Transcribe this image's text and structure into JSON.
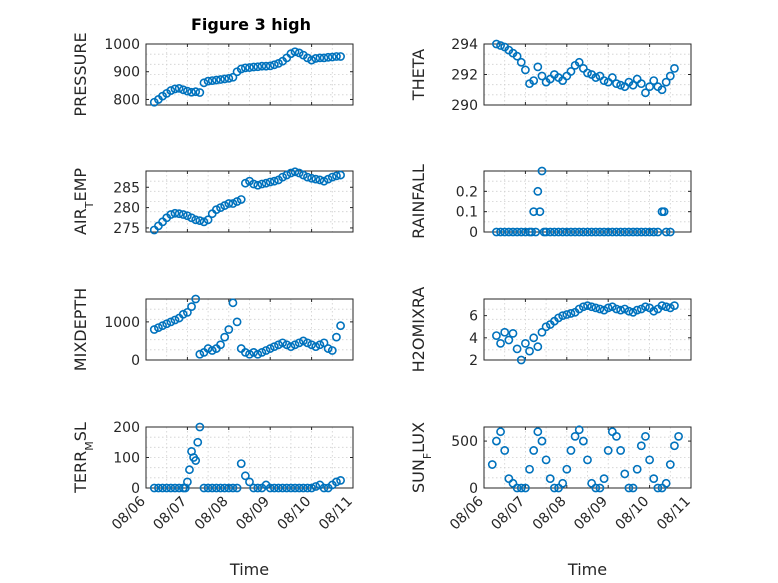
{
  "title": "Figure 3 high",
  "colors": {
    "marker": "#0072bd",
    "axis": "#262626",
    "grid": "#cfcfcf",
    "background": "#ffffff"
  },
  "x_tick_labels": [
    "08/06",
    "08/07",
    "08/08",
    "08/09",
    "08/10",
    "08/11"
  ],
  "x_label": "Time",
  "chart_data": [
    {
      "id": "pressure",
      "type": "scatter",
      "title": "Figure 3 high",
      "ylabel": "PRESSURE",
      "ylim": [
        780,
        1000
      ],
      "yticks": [
        "800",
        "900",
        "1000"
      ],
      "xlim": [
        0,
        5
      ],
      "grid": "on",
      "marker": "open-circle",
      "x": [
        0.2,
        0.3,
        0.4,
        0.5,
        0.6,
        0.7,
        0.8,
        0.9,
        1.0,
        1.1,
        1.2,
        1.3,
        1.4,
        1.5,
        1.6,
        1.7,
        1.8,
        1.9,
        2.0,
        2.1,
        2.2,
        2.3,
        2.4,
        2.5,
        2.6,
        2.7,
        2.8,
        2.9,
        3.0,
        3.1,
        3.2,
        3.3,
        3.4,
        3.5,
        3.6,
        3.7,
        3.8,
        3.9,
        4.0,
        4.1,
        4.2,
        4.3,
        4.4,
        4.5,
        4.6,
        4.7
      ],
      "y": [
        790,
        800,
        812,
        822,
        832,
        838,
        840,
        835,
        830,
        826,
        828,
        825,
        860,
        866,
        868,
        870,
        872,
        874,
        876,
        880,
        900,
        910,
        914,
        915,
        917,
        918,
        920,
        920,
        921,
        925,
        930,
        938,
        950,
        965,
        972,
        968,
        960,
        950,
        942,
        948,
        950,
        950,
        952,
        953,
        955,
        955
      ]
    },
    {
      "id": "theta",
      "type": "scatter",
      "ylabel": "THETA",
      "ylim": [
        290,
        294
      ],
      "yticks": [
        "290",
        "292",
        "294"
      ],
      "xlim": [
        0,
        5
      ],
      "grid": "on",
      "marker": "open-circle",
      "x": [
        0.3,
        0.4,
        0.5,
        0.6,
        0.7,
        0.8,
        0.9,
        1.0,
        1.1,
        1.2,
        1.3,
        1.4,
        1.5,
        1.6,
        1.7,
        1.8,
        1.9,
        2.0,
        2.1,
        2.2,
        2.3,
        2.4,
        2.5,
        2.6,
        2.7,
        2.8,
        2.9,
        3.0,
        3.1,
        3.2,
        3.3,
        3.4,
        3.5,
        3.6,
        3.7,
        3.8,
        3.9,
        4.0,
        4.1,
        4.2,
        4.3,
        4.4,
        4.5,
        4.6
      ],
      "y": [
        294,
        293.9,
        293.8,
        293.6,
        293.4,
        293.2,
        292.8,
        292.3,
        291.4,
        291.6,
        292.5,
        291.9,
        291.5,
        291.7,
        292.0,
        291.8,
        291.6,
        291.9,
        292.2,
        292.6,
        292.8,
        292.4,
        292.1,
        292.0,
        291.8,
        291.9,
        291.6,
        291.5,
        291.8,
        291.4,
        291.3,
        291.2,
        291.5,
        291.3,
        291.7,
        291.4,
        290.8,
        291.2,
        291.6,
        291.2,
        291.0,
        291.5,
        291.9,
        292.4
      ]
    },
    {
      "id": "air_temp",
      "type": "scatter",
      "ylabel": "AIR",
      "ylabel_sub": "T",
      "ylabel_rest": "EMP",
      "ylim": [
        274,
        289
      ],
      "yticks": [
        "275",
        "280",
        "285"
      ],
      "xlim": [
        0,
        5
      ],
      "grid": "on",
      "marker": "open-circle",
      "x": [
        0.2,
        0.3,
        0.4,
        0.5,
        0.6,
        0.7,
        0.8,
        0.9,
        1.0,
        1.1,
        1.2,
        1.3,
        1.4,
        1.5,
        1.6,
        1.7,
        1.8,
        1.9,
        2.0,
        2.1,
        2.2,
        2.3,
        2.4,
        2.5,
        2.6,
        2.7,
        2.8,
        2.9,
        3.0,
        3.1,
        3.2,
        3.3,
        3.4,
        3.5,
        3.6,
        3.7,
        3.8,
        3.9,
        4.0,
        4.1,
        4.2,
        4.3,
        4.4,
        4.5,
        4.6,
        4.7
      ],
      "y": [
        274.5,
        275.5,
        276.5,
        277.5,
        278.3,
        278.6,
        278.5,
        278.3,
        278.0,
        277.5,
        277.0,
        276.8,
        276.5,
        277.0,
        278.5,
        279.5,
        280.0,
        280.5,
        281.0,
        281.0,
        281.5,
        282.0,
        286.0,
        286.5,
        285.8,
        285.5,
        285.8,
        286.0,
        286.3,
        286.5,
        286.8,
        287.5,
        288.0,
        288.5,
        288.8,
        288.5,
        288.0,
        287.5,
        287.2,
        287.0,
        286.8,
        286.5,
        287.0,
        287.5,
        287.8,
        288.0
      ]
    },
    {
      "id": "rainfall",
      "type": "scatter",
      "ylabel": "RAINFALL",
      "ylim": [
        0,
        0.3
      ],
      "yticks": [
        "0",
        "0.1",
        "0.2"
      ],
      "xlim": [
        0,
        5
      ],
      "grid": "on",
      "marker": "open-circle",
      "x": [
        0.3,
        0.4,
        0.5,
        0.6,
        0.7,
        0.8,
        0.9,
        1.0,
        1.1,
        1.15,
        1.2,
        1.25,
        1.3,
        1.35,
        1.4,
        1.45,
        1.5,
        1.6,
        1.7,
        1.8,
        1.9,
        2.0,
        2.1,
        2.2,
        2.3,
        2.4,
        2.5,
        2.6,
        2.7,
        2.8,
        2.9,
        3.0,
        3.1,
        3.2,
        3.3,
        3.4,
        3.5,
        3.6,
        3.7,
        3.8,
        3.9,
        4.0,
        4.1,
        4.2,
        4.3,
        4.35,
        4.4,
        4.5
      ],
      "y": [
        0,
        0,
        0,
        0,
        0,
        0,
        0,
        0,
        0,
        0,
        0.1,
        0,
        0.2,
        0.1,
        0.3,
        0,
        0,
        0,
        0,
        0,
        0,
        0,
        0,
        0,
        0,
        0,
        0,
        0,
        0,
        0,
        0,
        0,
        0,
        0,
        0,
        0,
        0,
        0,
        0,
        0,
        0,
        0,
        0,
        0,
        0.1,
        0.1,
        0,
        0
      ]
    },
    {
      "id": "mixdepth",
      "type": "scatter",
      "ylabel": "MIXDEPTH",
      "ylim": [
        0,
        1600
      ],
      "yticks": [
        "0",
        "1000"
      ],
      "xlim": [
        0,
        5
      ],
      "grid": "on",
      "marker": "open-circle",
      "x": [
        0.2,
        0.3,
        0.4,
        0.5,
        0.6,
        0.7,
        0.8,
        0.9,
        1.0,
        1.1,
        1.2,
        1.3,
        1.4,
        1.5,
        1.6,
        1.7,
        1.8,
        1.9,
        2.0,
        2.1,
        2.2,
        2.3,
        2.4,
        2.5,
        2.6,
        2.7,
        2.8,
        2.9,
        3.0,
        3.1,
        3.2,
        3.3,
        3.4,
        3.5,
        3.6,
        3.7,
        3.8,
        3.9,
        4.0,
        4.1,
        4.2,
        4.3,
        4.4,
        4.5,
        4.6,
        4.7
      ],
      "y": [
        800,
        850,
        900,
        950,
        1000,
        1050,
        1100,
        1200,
        1250,
        1400,
        1600,
        150,
        200,
        300,
        250,
        300,
        400,
        600,
        800,
        1500,
        1000,
        300,
        200,
        150,
        200,
        150,
        200,
        250,
        300,
        350,
        400,
        450,
        400,
        350,
        400,
        450,
        500,
        450,
        400,
        350,
        400,
        450,
        300,
        250,
        600,
        900
      ]
    },
    {
      "id": "h2omixra",
      "type": "scatter",
      "ylabel": "H2OMIXRA",
      "ylim": [
        2,
        7.5
      ],
      "yticks": [
        "2",
        "4",
        "6"
      ],
      "xlim": [
        0,
        5
      ],
      "grid": "on",
      "marker": "open-circle",
      "x": [
        0.3,
        0.4,
        0.5,
        0.6,
        0.7,
        0.8,
        0.9,
        1.0,
        1.1,
        1.2,
        1.3,
        1.4,
        1.5,
        1.6,
        1.7,
        1.8,
        1.9,
        2.0,
        2.1,
        2.2,
        2.3,
        2.4,
        2.5,
        2.6,
        2.7,
        2.8,
        2.9,
        3.0,
        3.1,
        3.2,
        3.3,
        3.4,
        3.5,
        3.6,
        3.7,
        3.8,
        3.9,
        4.0,
        4.1,
        4.2,
        4.3,
        4.4,
        4.5,
        4.6
      ],
      "y": [
        4.2,
        3.5,
        4.5,
        3.8,
        4.4,
        3.0,
        2.0,
        3.5,
        2.8,
        4.0,
        3.2,
        4.5,
        5.0,
        5.2,
        5.5,
        5.8,
        6.0,
        6.1,
        6.2,
        6.3,
        6.6,
        6.8,
        6.9,
        6.8,
        6.7,
        6.6,
        6.5,
        6.7,
        6.8,
        6.6,
        6.5,
        6.6,
        6.4,
        6.3,
        6.5,
        6.6,
        6.8,
        6.7,
        6.4,
        6.6,
        6.9,
        6.8,
        6.7,
        6.9
      ]
    },
    {
      "id": "terr_msl",
      "type": "scatter",
      "ylabel": "TERR",
      "ylabel_sub": "M",
      "ylabel_rest": "SL",
      "ylim": [
        0,
        200
      ],
      "yticks": [
        "0",
        "100",
        "200"
      ],
      "xlim": [
        0,
        5
      ],
      "grid": "on",
      "marker": "open-circle",
      "xticks": [
        "08/06",
        "08/07",
        "08/08",
        "08/09",
        "08/10",
        "08/11"
      ],
      "xlabel": "Time",
      "x": [
        0.2,
        0.3,
        0.4,
        0.5,
        0.6,
        0.7,
        0.8,
        0.9,
        0.95,
        1.0,
        1.05,
        1.1,
        1.15,
        1.2,
        1.25,
        1.3,
        1.4,
        1.5,
        1.6,
        1.7,
        1.8,
        1.9,
        2.0,
        2.1,
        2.2,
        2.3,
        2.4,
        2.5,
        2.6,
        2.7,
        2.8,
        2.9,
        3.0,
        3.1,
        3.2,
        3.3,
        3.4,
        3.5,
        3.6,
        3.7,
        3.8,
        3.9,
        4.0,
        4.1,
        4.2,
        4.3,
        4.4,
        4.5,
        4.6,
        4.7
      ],
      "y": [
        0,
        0,
        0,
        0,
        0,
        0,
        0,
        0,
        0,
        20,
        60,
        120,
        100,
        90,
        150,
        200,
        0,
        0,
        0,
        0,
        0,
        0,
        0,
        0,
        0,
        80,
        40,
        20,
        0,
        0,
        0,
        10,
        0,
        0,
        0,
        0,
        0,
        0,
        0,
        0,
        0,
        0,
        0,
        5,
        10,
        0,
        0,
        10,
        20,
        25
      ]
    },
    {
      "id": "sun_flux",
      "type": "scatter",
      "ylabel": "SUN",
      "ylabel_sub": "F",
      "ylabel_rest": "LUX",
      "ylim": [
        0,
        650
      ],
      "yticks": [
        "0",
        "500"
      ],
      "xlim": [
        0,
        5
      ],
      "grid": "on",
      "marker": "open-circle",
      "xticks": [
        "08/06",
        "08/07",
        "08/08",
        "08/09",
        "08/10",
        "08/11"
      ],
      "xlabel": "Time",
      "x": [
        0.2,
        0.3,
        0.4,
        0.5,
        0.6,
        0.7,
        0.8,
        0.9,
        1.0,
        1.1,
        1.2,
        1.3,
        1.4,
        1.5,
        1.6,
        1.7,
        1.8,
        1.9,
        2.0,
        2.1,
        2.2,
        2.3,
        2.4,
        2.5,
        2.6,
        2.7,
        2.8,
        2.9,
        3.0,
        3.1,
        3.2,
        3.3,
        3.4,
        3.5,
        3.6,
        3.7,
        3.8,
        3.9,
        4.0,
        4.1,
        4.2,
        4.3,
        4.4,
        4.5,
        4.6,
        4.7
      ],
      "y": [
        250,
        500,
        600,
        400,
        100,
        50,
        0,
        0,
        0,
        200,
        400,
        600,
        500,
        300,
        100,
        0,
        0,
        50,
        200,
        400,
        550,
        620,
        500,
        300,
        50,
        0,
        0,
        100,
        400,
        600,
        550,
        400,
        150,
        0,
        0,
        200,
        450,
        550,
        300,
        100,
        0,
        0,
        50,
        250,
        450,
        550
      ]
    }
  ]
}
